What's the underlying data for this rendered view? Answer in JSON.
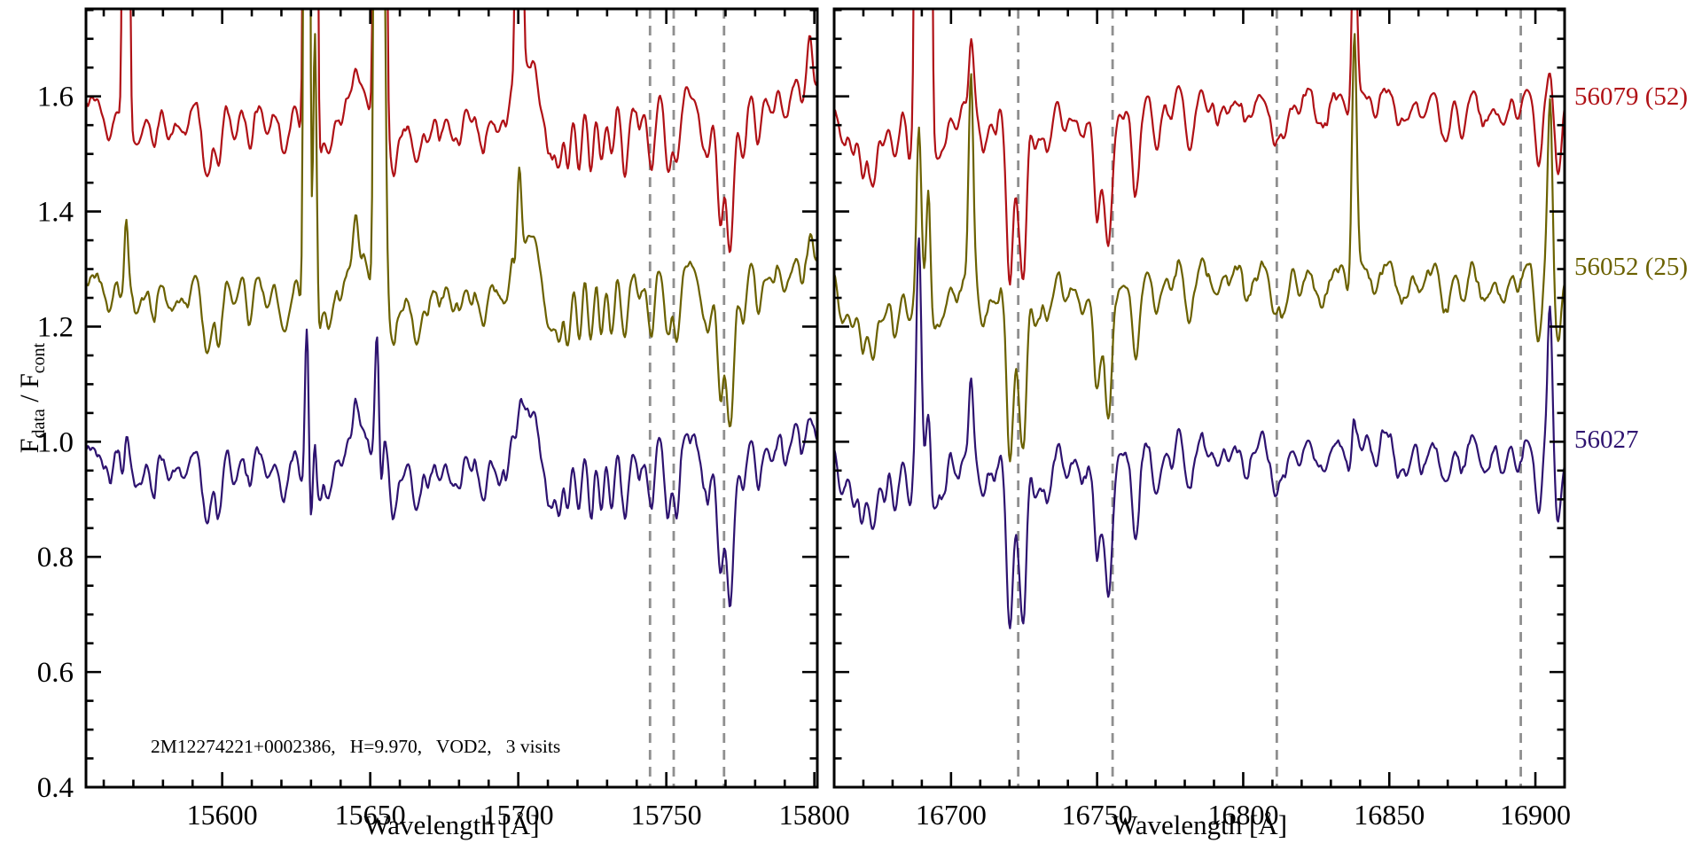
{
  "figure": {
    "annotation": "2M12274221+0002386,   H=9.970,   VOD2,   3 visits",
    "ylabel": {
      "sym1": "F",
      "sub1": "data",
      "sep": "/",
      "sym2": "F",
      "sub2": "cont"
    }
  },
  "chart_data": {
    "type": "line",
    "title": "",
    "ylabel": "F_data / F_cont",
    "xlabel": "Wavelength [Å]",
    "baseline": 1.0,
    "ylim": [
      0.4,
      1.752
    ],
    "ytick_values": [
      0.4,
      0.6,
      0.8,
      1.0,
      1.2,
      1.4,
      1.6
    ],
    "ytick_labels": [
      "0.4",
      "0.6",
      "0.8",
      "1.0",
      "1.2",
      "1.4",
      "1.6"
    ],
    "minor_ytick_step": 0.05,
    "grid": false,
    "legend_position": "right-outside",
    "dashed_line_color": "#8f8f8f",
    "series": [
      {
        "label": "56079 (52)",
        "color": "#b01116",
        "offset": 0.6,
        "noise_scale": 0.8,
        "noise_seed": 5
      },
      {
        "label": "56052 (25)",
        "color": "#6b6100",
        "offset": 0.3,
        "noise_scale": 0.9,
        "noise_seed": 6
      },
      {
        "label": "56027",
        "color": "#2e1370",
        "offset": 0.0,
        "noise_scale": 1.0,
        "noise_seed": 7
      }
    ],
    "panels": [
      {
        "xlabel": "Wavelength [Å]",
        "xlim": [
          15554,
          15801
        ],
        "xticks": [
          15600,
          15650,
          15700,
          15750,
          15800
        ],
        "xtick_labels": [
          "15600",
          "15650",
          "15700",
          "15750",
          "15800"
        ],
        "minor_tick_step": 10,
        "tilt": 0.025,
        "dashed_lines": [
          15744.5,
          15752.5,
          15769.5
        ],
        "bumps": [
          [
            15648,
            0.03,
            4
          ],
          [
            15703,
            0.06,
            4.5
          ],
          [
            15795,
            0.02,
            4
          ]
        ],
        "absorption_lines": [
          [
            15562,
            0.05,
            1.2
          ],
          [
            15566.5,
            0.05,
            0.9
          ],
          [
            15571,
            0.07,
            1.6
          ],
          [
            15577,
            0.05,
            1.2
          ],
          [
            15582,
            0.06,
            1.4
          ],
          [
            15588,
            0.05,
            1.2
          ],
          [
            15595,
            0.13,
            1.6
          ],
          [
            15599,
            0.06,
            1.0
          ],
          [
            15604,
            0.06,
            1.3
          ],
          [
            15609,
            0.05,
            1.2
          ],
          [
            15615,
            0.05,
            1.3
          ],
          [
            15621,
            0.09,
            1.8
          ],
          [
            15627,
            0.07,
            1.1
          ],
          [
            15629.8,
            0.13,
            0.8
          ],
          [
            15632.5,
            0.11,
            1.2
          ],
          [
            15636,
            0.1,
            1.3
          ],
          [
            15640,
            0.05,
            1.1
          ],
          [
            15650,
            0.05,
            1.1
          ],
          [
            15653.8,
            0.12,
            0.8
          ],
          [
            15658,
            0.05,
            1.2
          ],
          [
            15661,
            0.06,
            1.3
          ],
          [
            15666,
            0.1,
            1.7
          ],
          [
            15670,
            0.06,
            1.1
          ],
          [
            15673.5,
            0.06,
            1.3
          ],
          [
            15680,
            0.05,
            1.4
          ],
          [
            15684,
            0.05,
            1.1
          ],
          [
            15688,
            0.08,
            1.7
          ],
          [
            15694,
            0.05,
            1.2
          ],
          [
            15708,
            0.05,
            1.3
          ],
          [
            15712,
            0.07,
            1.4
          ],
          [
            15716.8,
            0.1,
            0.9
          ],
          [
            15720.5,
            0.12,
            1.0
          ],
          [
            15724.5,
            0.13,
            1.0
          ],
          [
            15728,
            0.12,
            0.9
          ],
          [
            15731.5,
            0.12,
            1.0
          ],
          [
            15736,
            0.11,
            1.0
          ],
          [
            15741,
            0.06,
            1.0
          ],
          [
            15745,
            0.12,
            1.1
          ],
          [
            15750.5,
            0.13,
            1.1
          ],
          [
            15753.5,
            0.13,
            1.1
          ],
          [
            15762,
            0.05,
            1.0
          ],
          [
            15768.2,
            0.17,
            1.0
          ],
          [
            15771.6,
            0.21,
            1.2
          ],
          [
            15770,
            0.07,
            2.8
          ],
          [
            15776,
            0.1,
            1.1
          ],
          [
            15781,
            0.05,
            1.0
          ],
          [
            15786,
            0.04,
            1.0
          ],
          [
            15790,
            0.05,
            1.0
          ],
          [
            15796,
            0.04,
            0.9
          ]
        ],
        "emission_lines": [
          [
            15567.5,
            0.7,
            2.5,
            0.13,
            0.04
          ],
          [
            15628.6,
            0.7,
            3.0,
            3.0,
            0.3
          ],
          [
            15631.3,
            0.6,
            2.2,
            0.5,
            0.08
          ],
          [
            15645.0,
            0.8,
            0.05,
            0.1,
            0.08
          ],
          [
            15652.3,
            0.7,
            3.0,
            3.0,
            0.22
          ],
          [
            15654.6,
            0.6,
            2.2,
            0.7,
            0.06
          ],
          [
            15700.3,
            0.7,
            2.6,
            0.17,
            0.05
          ],
          [
            15798.5,
            0.8,
            0.08,
            0.03,
            0.02
          ]
        ],
        "random_lines": {
          "seed": 11,
          "count": 48
        }
      },
      {
        "xlabel": "Wavelength [Å]",
        "xlim": [
          16660,
          16910
        ],
        "xticks": [
          16700,
          16750,
          16800,
          16850,
          16900
        ],
        "xtick_labels": [
          "16700",
          "16750",
          "16800",
          "16850",
          "16900"
        ],
        "minor_tick_step": 10,
        "tilt": 0.02,
        "dashed_lines": [
          16723,
          16755.3,
          16811.5,
          16895
        ],
        "bumps": [
          [
            16785,
            0.025,
            8
          ]
        ],
        "absorption_lines": [
          [
            16663,
            0.05,
            1.2
          ],
          [
            16666.5,
            0.09,
            1.4
          ],
          [
            16669.5,
            0.07,
            1.1
          ],
          [
            16673,
            0.1,
            1.5
          ],
          [
            16677,
            0.08,
            1.2
          ],
          [
            16681,
            0.09,
            1.4
          ],
          [
            16686,
            0.06,
            1.2
          ],
          [
            16694,
            0.09,
            1.2
          ],
          [
            16698,
            0.06,
            1.2
          ],
          [
            16702,
            0.05,
            1.2
          ],
          [
            16711,
            0.07,
            1.4
          ],
          [
            16715,
            0.06,
            1.1
          ],
          [
            16720,
            0.21,
            1.1
          ],
          [
            16724.5,
            0.21,
            1.2
          ],
          [
            16722.5,
            0.1,
            2.5
          ],
          [
            16729,
            0.06,
            1.0
          ],
          [
            16733,
            0.09,
            1.4
          ],
          [
            16739,
            0.06,
            1.2
          ],
          [
            16745,
            0.07,
            1.3
          ],
          [
            16749.8,
            0.13,
            1.0
          ],
          [
            16754,
            0.15,
            1.1
          ],
          [
            16752.5,
            0.12,
            2.8
          ],
          [
            16763,
            0.15,
            1.2
          ],
          [
            16770,
            0.06,
            1.2
          ],
          [
            16775,
            0.04,
            1.1
          ],
          [
            16781,
            0.04,
            1.2
          ],
          [
            16788,
            0.04,
            1.1
          ],
          [
            16795,
            0.04,
            1.2
          ],
          [
            16803,
            0.04,
            1.1
          ],
          [
            16811,
            0.06,
            1.4
          ],
          [
            16819,
            0.04,
            1.1
          ],
          [
            16828,
            0.05,
            1.3
          ],
          [
            16836,
            0.04,
            1.1
          ],
          [
            16845,
            0.04,
            1.1
          ],
          [
            16853,
            0.05,
            1.2
          ],
          [
            16861,
            0.05,
            1.3
          ],
          [
            16869,
            0.06,
            1.3
          ],
          [
            16875,
            0.07,
            1.3
          ],
          [
            16882,
            0.06,
            1.3
          ],
          [
            16889,
            0.07,
            1.4
          ],
          [
            16894,
            0.05,
            1.1
          ],
          [
            16901,
            0.13,
            1.2
          ],
          [
            16907.5,
            0.12,
            1.0
          ]
        ],
        "emission_lines": [
          [
            16689.0,
            0.8,
            3.0,
            0.28,
            0.38
          ],
          [
            16692.3,
            0.7,
            2.4,
            0.2,
            0.12
          ],
          [
            16706.8,
            0.8,
            0.12,
            0.36,
            0.13
          ],
          [
            16838.0,
            0.8,
            0.35,
            0.42,
            0.05
          ],
          [
            16905.0,
            0.8,
            0.04,
            0.28,
            0.24
          ]
        ],
        "random_lines": {
          "seed": 22,
          "count": 50
        }
      }
    ]
  }
}
